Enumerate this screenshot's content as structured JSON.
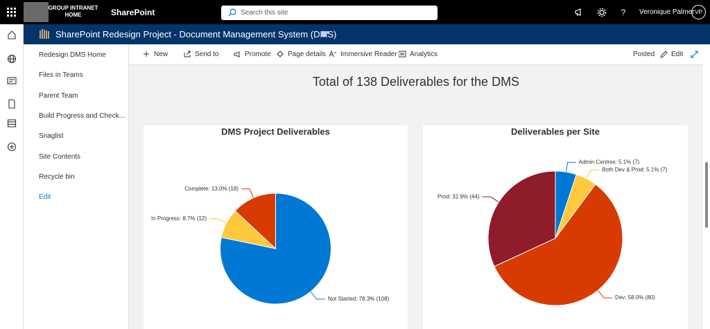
{
  "suite_bar": {
    "org_logo": "GROUP INTRANET HOME",
    "app_name": "SharePoint",
    "search_placeholder": "Search this site",
    "user_name": "Veronique Palmer",
    "user_initials": "VP"
  },
  "site_header": {
    "title": "SharePoint Redesign Project - Document Management System (DMS)"
  },
  "navigation": [
    "Redesign DMS Home",
    "Files in Teams",
    "Parent Team",
    "Build Progress and Check...",
    "Snaglist",
    "Site Contents",
    "Recycle bin",
    "Edit"
  ],
  "command_bar": {
    "items": [
      "New",
      "Send to",
      "Promote",
      "Page details",
      "Immersive Reader",
      "Analytics"
    ],
    "status": "Posted",
    "edit": "Edit"
  },
  "page": {
    "title": "Total of 138 Deliverables for the DMS"
  },
  "chart_data": [
    {
      "type": "pie",
      "title": "DMS Project Deliverables",
      "categories": [
        "Not Started: 78.3% (108)",
        "In Progress: 8.7% (12)",
        "Complete: 13.0% (18)"
      ],
      "values": [
        108,
        12,
        18
      ],
      "colors": [
        "#0078d4",
        "#ffc83d",
        "#d83b01"
      ]
    },
    {
      "type": "pie",
      "title": "Deliverables per Site",
      "categories": [
        "Admin Centres: 5.1% (7)",
        "Both Dev & Prod: 5.1% (7)",
        "Dev: 58.0% (80)",
        "Prod: 31.9% (44)"
      ],
      "values": [
        7,
        7,
        80,
        44
      ],
      "colors": [
        "#0078d4",
        "#ffc83d",
        "#d83b01",
        "#8e1c2b"
      ]
    }
  ]
}
